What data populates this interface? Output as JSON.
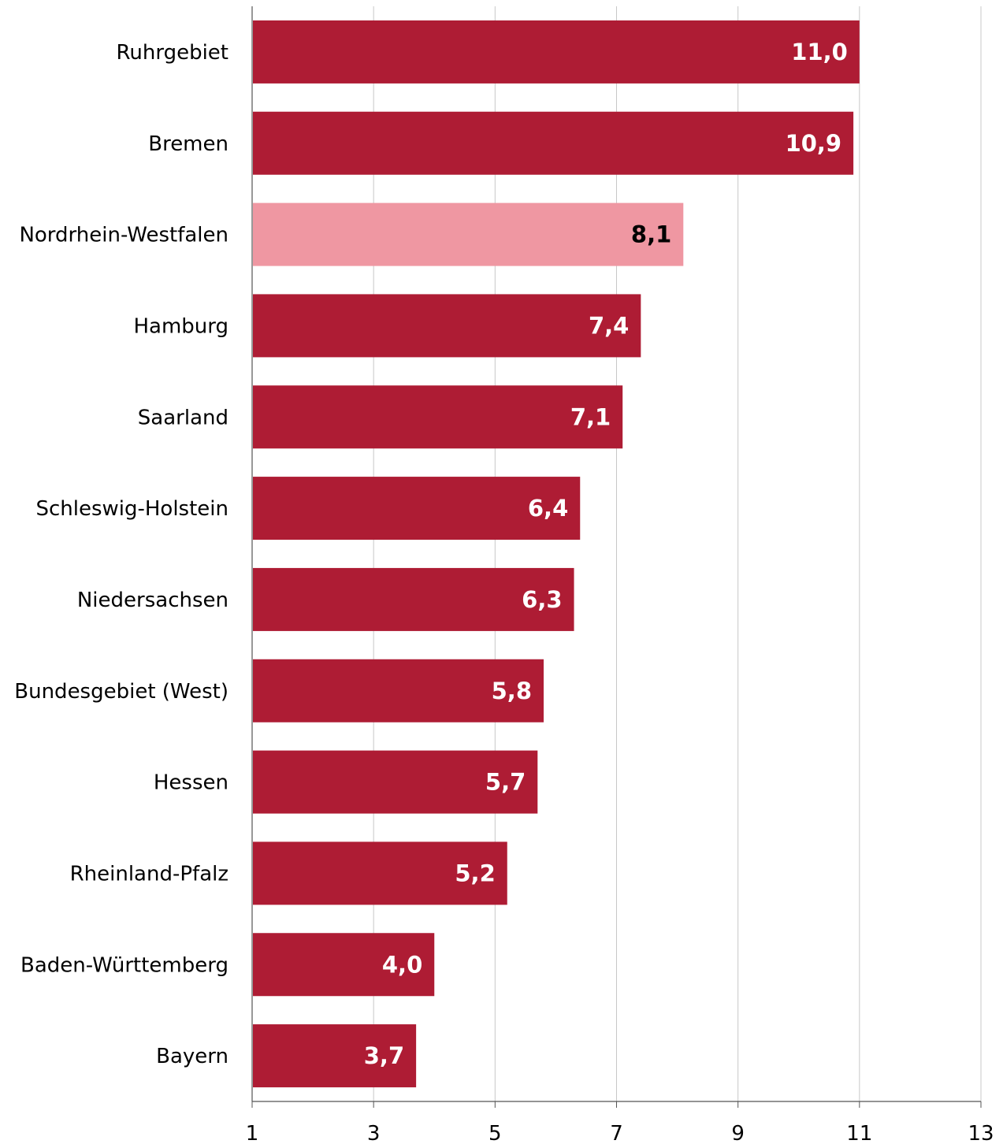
{
  "chart_data": {
    "type": "bar",
    "orientation": "horizontal",
    "categories": [
      "Ruhrgebiet",
      "Bremen",
      "Nordrhein-Westfalen",
      "Hamburg",
      "Saarland",
      "Schleswig-Holstein",
      "Niedersachsen",
      "Bundesgebiet (West)",
      "Hessen",
      "Rheinland-Pfalz",
      "Baden-Württemberg",
      "Bayern"
    ],
    "values": [
      11.0,
      10.9,
      8.1,
      7.4,
      7.1,
      6.4,
      6.3,
      5.8,
      5.7,
      5.2,
      4.0,
      3.7
    ],
    "value_labels": [
      "11,0",
      "10,9",
      "8,1",
      "7,4",
      "7,1",
      "6,4",
      "6,3",
      "5,8",
      "5,7",
      "5,2",
      "4,0",
      "3,7"
    ],
    "highlight_category": "Nordrhein-Westfalen",
    "xlim": [
      1,
      13
    ],
    "xticks": [
      1,
      3,
      5,
      7,
      9,
      11,
      13
    ],
    "xtick_labels": [
      "1",
      "3",
      "5",
      "7",
      "9",
      "11",
      "13"
    ],
    "title": "",
    "xlabel": "",
    "ylabel": "",
    "grid": "vertical",
    "legend": "none",
    "colors": {
      "bar": "#ae1c34",
      "highlight_bar": "#ef97a2",
      "label_on_bar": "#ffffff",
      "label_on_highlight": "#000000",
      "grid": "#c8c8c8",
      "axis": "#555555"
    }
  }
}
